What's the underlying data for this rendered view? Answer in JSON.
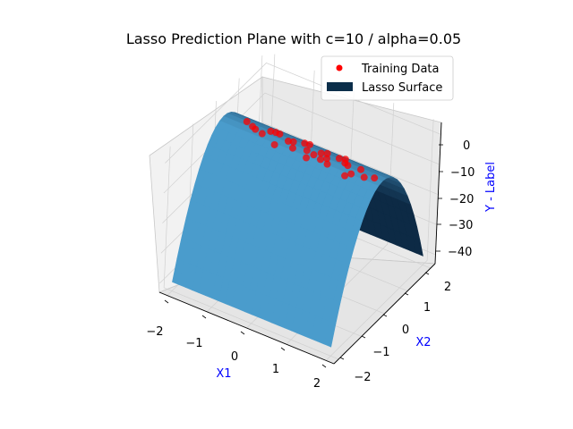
{
  "chart_data": {
    "type": "surface3d",
    "title": "Lasso Prediction Plane with c=10 / alpha=0.05",
    "xlabel": "X1",
    "ylabel": "X2",
    "zlabel": "Y - Label",
    "axis_label_color": "#0000ff",
    "x_ticks": [
      "−2",
      "−1",
      "0",
      "1",
      "2"
    ],
    "y_ticks": [
      "−2",
      "−1",
      "0",
      "1",
      "2"
    ],
    "z_ticks": [
      "0",
      "−10",
      "−20",
      "−30",
      "−40"
    ],
    "xlim": [
      -2.2,
      2.2
    ],
    "ylim": [
      -2.2,
      2.2
    ],
    "zlim": [
      -43,
      4
    ],
    "grid": true,
    "legend_position": "top-right",
    "legend": [
      {
        "label": "Training Data",
        "kind": "scatter",
        "color": "#ff0000"
      },
      {
        "label": "Lasso Surface",
        "kind": "surface",
        "color": "#0b2e4a"
      }
    ],
    "surface_model": {
      "description_formula": "z = -10 * x2^2 (approximately; surface bends along X2 and is flat along X1)",
      "x1_range": [
        -2,
        2
      ],
      "x2_range": [
        -2,
        2
      ],
      "colors": {
        "light": "#4a9ccc",
        "dark": "#0d2a45"
      }
    },
    "training_data": {
      "x1": [
        0.1,
        -0.3,
        0.5,
        0.8,
        -0.6,
        1.1,
        -0.9,
        0.3,
        -0.1,
        0.7,
        1.4,
        -1.2,
        0.2,
        0.9,
        -0.4,
        1.6,
        -0.8,
        0.4,
        1.2,
        -1.5,
        0.6,
        -0.2,
        1.0,
        -1.0,
        1.8,
        -0.7,
        0.0,
        1.3,
        -1.3,
        0.5
      ],
      "x2": [
        0.0,
        0.1,
        -0.1,
        0.2,
        -0.2,
        0.05,
        0.15,
        -0.05,
        0.25,
        -0.15,
        0.1,
        0.0,
        -0.2,
        0.3,
        0.05,
        -0.1,
        0.2,
        0.1,
        -0.25,
        0.15,
        0.0,
        -0.1,
        0.1,
        -0.05,
        0.0,
        0.2,
        0.3,
        -0.15,
        0.05,
        0.2
      ],
      "y": [
        0.0,
        -0.1,
        -0.1,
        -0.4,
        -0.4,
        0.0,
        -0.2,
        0.0,
        -0.6,
        -0.2,
        -0.1,
        0.0,
        -0.4,
        -0.9,
        0.0,
        -0.1,
        -0.4,
        -0.1,
        -0.6,
        -0.2,
        0.0,
        -0.1,
        -0.1,
        0.0,
        0.0,
        -0.4,
        -0.9,
        -0.2,
        0.0,
        -0.4
      ],
      "color": "#ff0000"
    }
  }
}
